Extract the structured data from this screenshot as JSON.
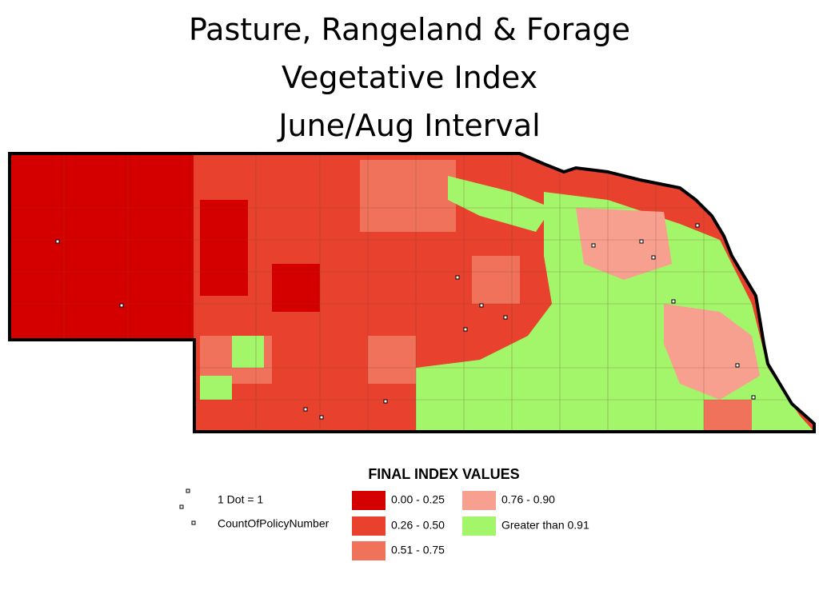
{
  "header": {
    "title_lines": [
      "Pasture, Rangeland & Forage",
      "Vegetative Index",
      "June/Aug Interval"
    ]
  },
  "legend": {
    "heading": "FINAL INDEX VALUES",
    "dot_labels": [
      "1 Dot = 1",
      "CountOfPolicyNumber"
    ],
    "classes": [
      {
        "label": "0.00 - 0.25",
        "color": "#d40000"
      },
      {
        "label": "0.26 - 0.50",
        "color": "#e8412e"
      },
      {
        "label": "0.51 - 0.75",
        "color": "#f0725a"
      },
      {
        "label": "0.76 - 0.90",
        "color": "#f7a090"
      },
      {
        "label": "Greater than 0.91",
        "color": "#a3f56a"
      }
    ]
  }
}
